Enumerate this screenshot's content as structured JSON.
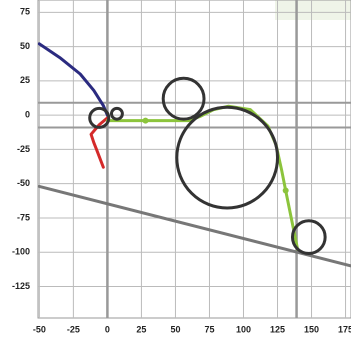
{
  "chart_data": {
    "type": "line",
    "xlim": [
      -51,
      179
    ],
    "ylim": [
      -148,
      84
    ],
    "xticks": [
      -50,
      -25,
      0,
      25,
      50,
      75,
      100,
      125,
      150,
      175
    ],
    "yticks": [
      75,
      50,
      25,
      0,
      -25,
      -50,
      -75,
      -100,
      -125
    ],
    "grid": true,
    "vlines": [
      0,
      139
    ],
    "hlines": [
      9,
      -9
    ],
    "series": [
      {
        "color": "#2b2b80",
        "x": [
          -50,
          -35,
          -20,
          -10,
          -3,
          0
        ],
        "values": [
          52,
          42,
          30,
          18,
          7,
          0
        ]
      },
      {
        "color": "#d42a2a",
        "x": [
          0,
          -6,
          -12,
          -10,
          -8,
          -3
        ],
        "values": [
          -2,
          -7,
          -14,
          -20,
          -25,
          -38
        ]
      },
      {
        "color": "#8cc43c",
        "x": [
          0,
          28,
          60,
          68,
          78,
          89,
          105,
          118,
          124,
          128,
          131,
          140
        ],
        "values": [
          -4,
          -4,
          -4,
          -1,
          4,
          6.5,
          4,
          -8,
          -22,
          -40,
          -55,
          -99
        ],
        "markers": [
          1,
          10
        ]
      },
      {
        "color": "#777777",
        "x": [
          -50,
          179
        ],
        "values": [
          -52,
          -110
        ]
      }
    ],
    "circles": [
      {
        "x": 88,
        "y": -31,
        "r": 37
      },
      {
        "x": 56,
        "y": 12,
        "r": 15
      },
      {
        "x": -6,
        "y": -2,
        "r": 7
      },
      {
        "x": 7,
        "y": 1,
        "r": 4
      },
      {
        "x": 148,
        "y": -89,
        "r": 12
      }
    ]
  }
}
